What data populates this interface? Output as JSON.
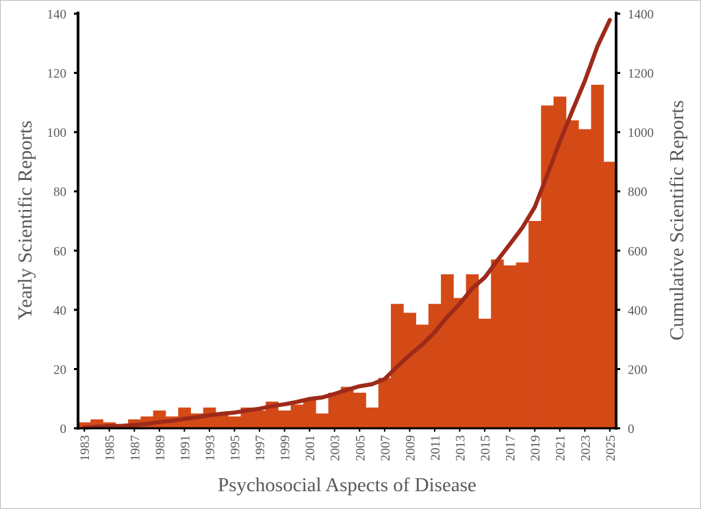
{
  "chart_data": {
    "type": "bar",
    "title": "",
    "xlabel": "Psychosocial Aspects of Disease",
    "ylabel": "Yearly Scientific Reports",
    "y2label": "Cumulative Scientific Reports",
    "ylim": [
      0,
      140
    ],
    "y2lim": [
      0,
      1400
    ],
    "yticks": [
      "0",
      "20",
      "40",
      "60",
      "80",
      "100",
      "120",
      "140"
    ],
    "y2ticks": [
      "0",
      "200",
      "400",
      "600",
      "800",
      "1000",
      "1200",
      "1400"
    ],
    "xtick_labels": [
      "1983",
      "1985",
      "1987",
      "1989",
      "1991",
      "1993",
      "1995",
      "1997",
      "1999",
      "2001",
      "2003",
      "2005",
      "2007",
      "2009",
      "2011",
      "2013",
      "2015",
      "2017",
      "2019",
      "2021",
      "2023",
      "2025"
    ],
    "grid": false,
    "categories": [
      1983,
      1984,
      1985,
      1986,
      1987,
      1988,
      1989,
      1990,
      1991,
      1992,
      1993,
      1994,
      1995,
      1996,
      1997,
      1998,
      1999,
      2000,
      2001,
      2002,
      2003,
      2004,
      2005,
      2006,
      2007,
      2008,
      2009,
      2010,
      2011,
      2012,
      2013,
      2014,
      2015,
      2016,
      2017,
      2018,
      2019,
      2020,
      2021,
      2022,
      2023,
      2024,
      2025
    ],
    "series": [
      {
        "axis": "left",
        "kind": "bar",
        "color": "#d44a17",
        "values": [
          2,
          3,
          2,
          1,
          3,
          4,
          6,
          4,
          7,
          5,
          7,
          5,
          4,
          7,
          6,
          9,
          6,
          8,
          10,
          5,
          12,
          14,
          12,
          7,
          17,
          42,
          39,
          35,
          42,
          52,
          44,
          52,
          37,
          57,
          55,
          56,
          70,
          109,
          112,
          104,
          101,
          116,
          90
        ]
      },
      {
        "axis": "right",
        "kind": "line",
        "color": "#9e2a1a",
        "values": [
          2,
          5,
          7,
          8,
          11,
          15,
          21,
          25,
          32,
          37,
          44,
          49,
          53,
          60,
          66,
          75,
          81,
          89,
          99,
          104,
          116,
          130,
          142,
          149,
          166,
          208,
          247,
          282,
          324,
          376,
          420,
          472,
          509,
          566,
          621,
          677,
          747,
          856,
          968,
          1072,
          1173,
          1289,
          1379
        ]
      }
    ]
  }
}
